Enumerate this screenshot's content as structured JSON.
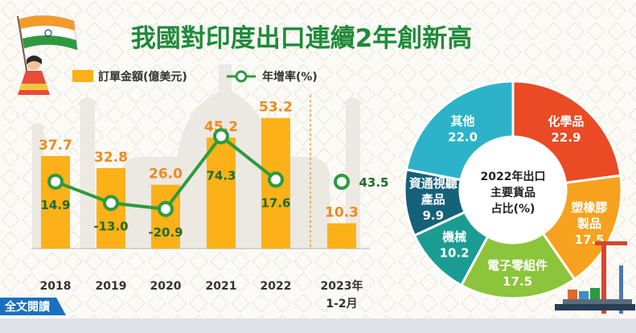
{
  "title": "我國對印度出口連續2年創新高",
  "footer_link": "全文閱讀",
  "colors": {
    "bar": "#fbb117",
    "bar_label": "#ee8a1c",
    "line": "#2e9a3f",
    "line_label": "#1f6b2c",
    "title": "#1f8a3a"
  },
  "chart_data": [
    {
      "type": "bar",
      "legend": [
        {
          "name": "訂單金額(億美元)",
          "marker": "bar"
        },
        {
          "name": "年增率(%)",
          "marker": "line"
        }
      ],
      "categories": [
        "2018",
        "2019",
        "2020",
        "2021",
        "2022",
        "2023年\n1-2月"
      ],
      "series": [
        {
          "name": "訂單金額(億美元)",
          "type": "bar",
          "values": [
            37.7,
            32.8,
            26.0,
            45.2,
            53.2,
            10.3
          ],
          "labels": [
            "37.7",
            "32.8",
            "26.0",
            "45.2",
            "53.2",
            "10.3"
          ]
        },
        {
          "name": "年增率(%)",
          "type": "line",
          "values": [
            14.9,
            -13.0,
            -20.9,
            74.3,
            17.6,
            43.5
          ],
          "labels": [
            "14.9",
            "-13.0",
            "-20.9",
            "74.3",
            "17.6",
            "43.5"
          ]
        }
      ],
      "ylim_bar": [
        0,
        60
      ],
      "ylim_line": [
        -40,
        100
      ]
    },
    {
      "type": "pie",
      "center_label": [
        "2022年出口",
        "主要貨品",
        "占比(%)"
      ],
      "slices": [
        {
          "name": "化學品",
          "value": 22.9,
          "label": "22.9",
          "color": "#ea4a24"
        },
        {
          "name": "塑橡膠\n製品",
          "value": 17.5,
          "label": "17.5",
          "color": "#f6a21e"
        },
        {
          "name": "電子零組件",
          "value": 17.5,
          "label": "17.5",
          "color": "#8cc43c"
        },
        {
          "name": "機械",
          "value": 10.2,
          "label": "10.2",
          "color": "#1b9c93"
        },
        {
          "name": "資通視聽\n產品",
          "value": 9.9,
          "label": "9.9",
          "color": "#16617a"
        },
        {
          "name": "其他",
          "value": 22.0,
          "label": "22.0",
          "color": "#2cb3c9"
        }
      ]
    }
  ]
}
